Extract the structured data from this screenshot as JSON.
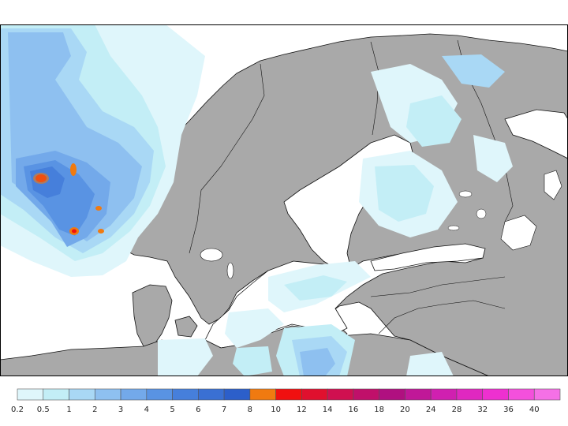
{
  "map": {
    "region": "",
    "colors": {
      "land": "#a9a9a9",
      "sea": "#ffffff",
      "coast": "#111111"
    },
    "precip_levels": [
      {
        "label": "0.2",
        "color": "#dff6fb"
      },
      {
        "label": "0.5",
        "color": "#c3eef6"
      },
      {
        "label": "1",
        "color": "#a9d8f5"
      },
      {
        "label": "2",
        "color": "#8ec0f0"
      },
      {
        "label": "3",
        "color": "#73a9ea"
      },
      {
        "label": "4",
        "color": "#5993e3"
      },
      {
        "label": "5",
        "color": "#467fdb"
      },
      {
        "label": "6",
        "color": "#3a70d3"
      },
      {
        "label": "7",
        "color": "#2c5fca"
      },
      {
        "label": "8",
        "color": "#f07a10"
      },
      {
        "label": "10",
        "color": "#f01010"
      },
      {
        "label": "12",
        "color": "#e0102e"
      },
      {
        "label": "14",
        "color": "#d01050"
      },
      {
        "label": "16",
        "color": "#c0106a"
      },
      {
        "label": "18",
        "color": "#b01080"
      },
      {
        "label": "20",
        "color": "#c01898"
      },
      {
        "label": "24",
        "color": "#d020b0"
      },
      {
        "label": "28",
        "color": "#e028c0"
      },
      {
        "label": "32",
        "color": "#ee30d0"
      },
      {
        "label": "36",
        "color": "#f450dc"
      },
      {
        "label": "40",
        "color": "#f570e6"
      }
    ]
  }
}
